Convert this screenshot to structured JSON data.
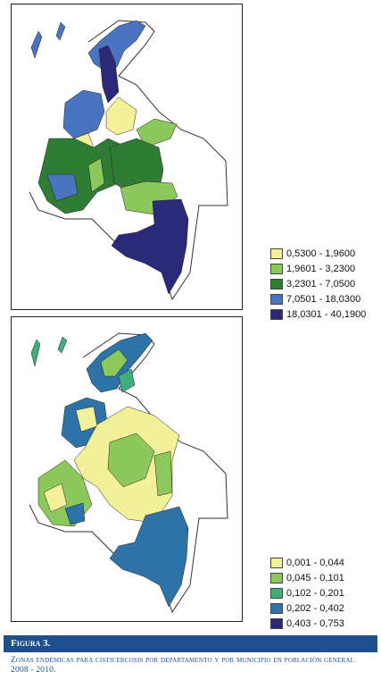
{
  "map1": {
    "legend": [
      {
        "label": "0,5300 - 1,9600",
        "color": "#f7f09a"
      },
      {
        "label": "1,9601 - 3,2300",
        "color": "#8cc85c"
      },
      {
        "label": "3,2301 - 7,0500",
        "color": "#2f7d34"
      },
      {
        "label": "7,0501 - 18,0300",
        "color": "#4a74c0"
      },
      {
        "label": "18,0301 - 40,1900",
        "color": "#2b2a78"
      }
    ]
  },
  "map2": {
    "legend": [
      {
        "label": "0,001 - 0,044",
        "color": "#f3f09a"
      },
      {
        "label": "0,045 - 0,101",
        "color": "#8cc85c"
      },
      {
        "label": "0,102 - 0,201",
        "color": "#3fae7a"
      },
      {
        "label": "0,202 - 0,402",
        "color": "#2e73a8"
      },
      {
        "label": "0,403 - 0,753",
        "color": "#2b2a78"
      }
    ]
  },
  "figure": {
    "label": "Figura 3.",
    "caption": "Zonas endémicas para cisticercosis por departamento y por municipio en población general 2008 - 2010."
  }
}
